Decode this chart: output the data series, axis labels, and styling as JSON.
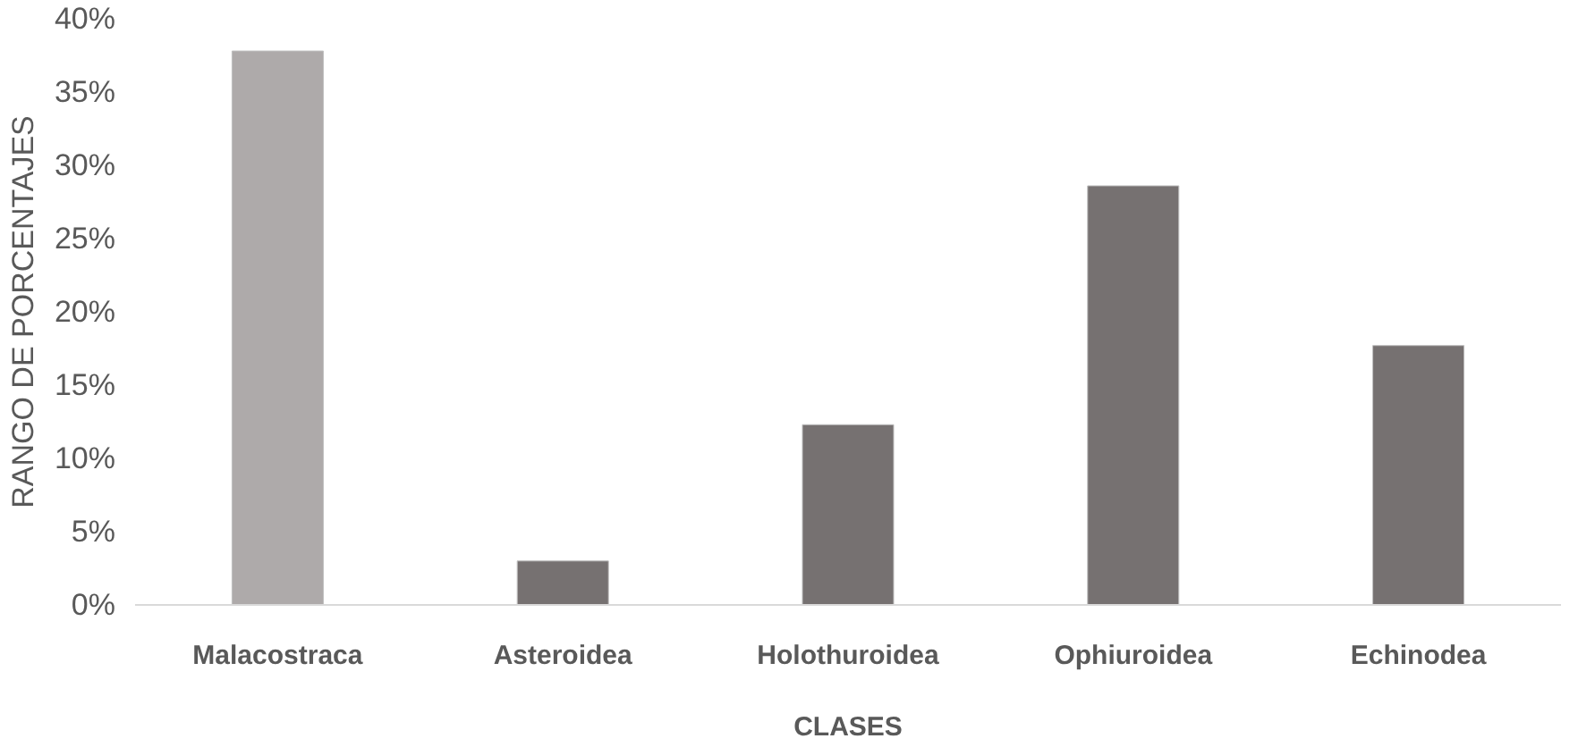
{
  "chart_data": {
    "type": "bar",
    "xlabel": "CLASES",
    "ylabel": "RANGO DE PORCENTAJES",
    "categories": [
      "Malacostraca",
      "Asteroidea",
      "Holothuroidea",
      "Ophiuroidea",
      "Echinodea"
    ],
    "values": [
      37.8,
      3.0,
      12.3,
      28.6,
      17.7
    ],
    "colors": [
      "#aeaaaa",
      "#767171",
      "#767171",
      "#767171",
      "#767171"
    ],
    "ylim": [
      0,
      40
    ],
    "yticks": [
      {
        "value": 0,
        "label": "0%"
      },
      {
        "value": 5,
        "label": "5%"
      },
      {
        "value": 10,
        "label": "10%"
      },
      {
        "value": 15,
        "label": "15%"
      },
      {
        "value": 20,
        "label": "20%"
      },
      {
        "value": 25,
        "label": "25%"
      },
      {
        "value": 30,
        "label": "30%"
      },
      {
        "value": 35,
        "label": "35%"
      },
      {
        "value": 40,
        "label": "40%"
      }
    ],
    "grid": false
  }
}
